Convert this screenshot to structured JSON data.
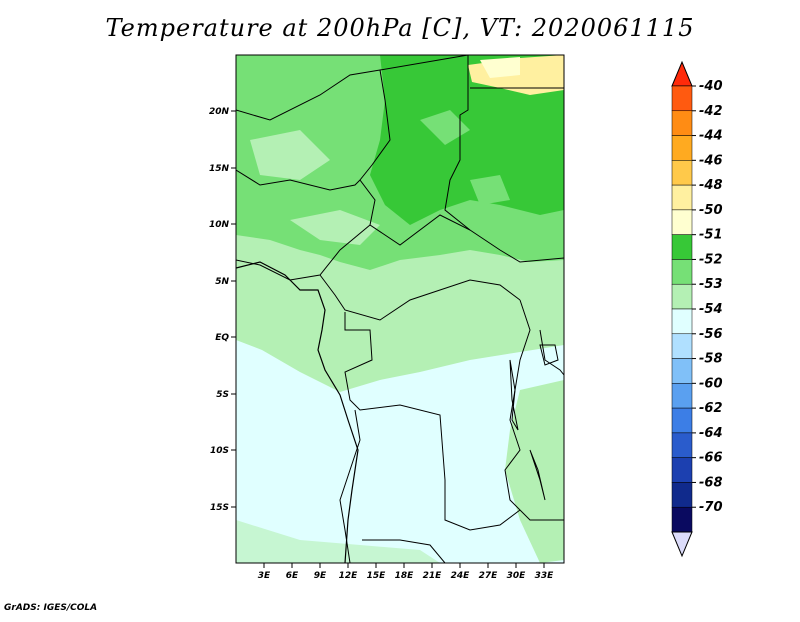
{
  "title": "Temperature at 200hPa [C], VT: 2020061115",
  "credit": "GrADS: IGES/COLA",
  "map": {
    "lon_labels": [
      "3E",
      "6E",
      "9E",
      "12E",
      "15E",
      "18E",
      "21E",
      "24E",
      "27E",
      "30E",
      "33E"
    ],
    "lat_labels": [
      "20N",
      "15N",
      "10N",
      "5N",
      "EQ",
      "5S",
      "10S",
      "15S"
    ]
  },
  "colorbar": {
    "labels": [
      "-40",
      "-42",
      "-44",
      "-46",
      "-48",
      "-50",
      "-51",
      "-52",
      "-53",
      "-54",
      "-56",
      "-58",
      "-60",
      "-62",
      "-64",
      "-66",
      "-68",
      "-70"
    ],
    "colors": [
      "#ff2a0a",
      "#ff5a10",
      "#ff8c14",
      "#ffaa20",
      "#ffc94a",
      "#fff0a0",
      "#ffffd0",
      "#37c837",
      "#76e076",
      "#b4f0b4",
      "#e0ffff",
      "#b0e0ff",
      "#80c0f8",
      "#5aa0f0",
      "#3c7ee6",
      "#2a5ccc",
      "#1c40b0",
      "#102a8c",
      "#0a0a60",
      "#dcdcfa"
    ]
  }
}
